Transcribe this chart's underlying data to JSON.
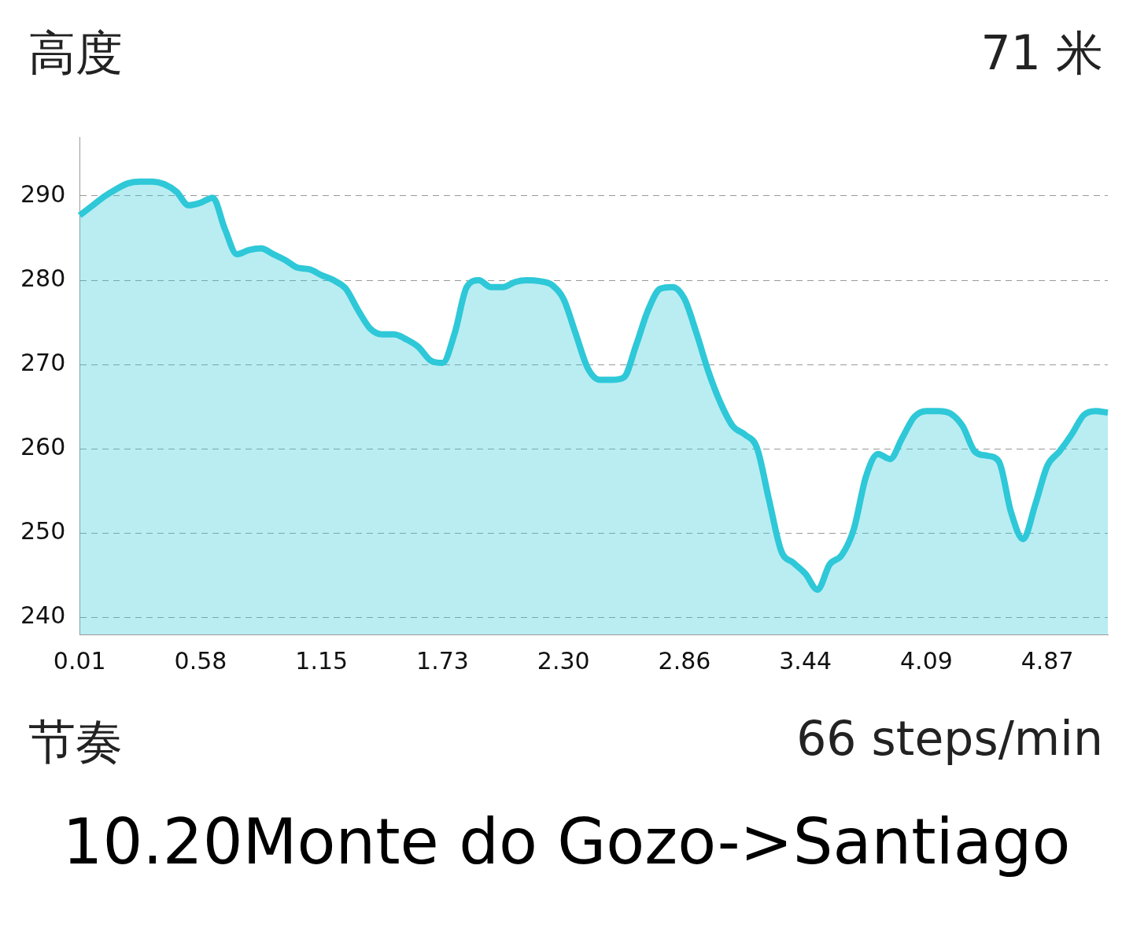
{
  "chart_data": {
    "type": "area",
    "title": "高度",
    "subtitle": "71 米",
    "annotations": [
      "节奏",
      "66 steps/min",
      "10.20Monte do Gozo->Santiago"
    ],
    "categories": [
      "0.01",
      null,
      null,
      null,
      null,
      null,
      null,
      null,
      null,
      null,
      "0.58",
      null,
      null,
      null,
      null,
      null,
      null,
      null,
      null,
      null,
      "1.15",
      null,
      null,
      null,
      null,
      null,
      null,
      null,
      null,
      null,
      "1.73",
      null,
      null,
      null,
      null,
      null,
      null,
      null,
      null,
      null,
      "2.30",
      null,
      null,
      null,
      null,
      null,
      null,
      null,
      null,
      null,
      "2.86",
      null,
      null,
      null,
      null,
      null,
      null,
      null,
      null,
      null,
      "3.44",
      null,
      null,
      null,
      null,
      null,
      null,
      null,
      null,
      null,
      "4.09",
      null,
      null,
      null,
      null,
      null,
      null,
      null,
      null,
      null,
      "4.87",
      null,
      null,
      null,
      null,
      null
    ],
    "series": [
      {
        "color": "#2ec8d8",
        "values": [
          287.7,
          288.8,
          289.9,
          290.8,
          291.5,
          291.7,
          291.7,
          291.4,
          290.5,
          288.9,
          289.2,
          289.8,
          286.1,
          283.1,
          283.6,
          283.8,
          283.1,
          282.4,
          281.5,
          281.3,
          280.6,
          280.0,
          279.0,
          276.5,
          274.3,
          273.6,
          273.6,
          273.0,
          272.1,
          270.5,
          270.2,
          273.7,
          279.2,
          280.0,
          279.2,
          279.2,
          279.8,
          280.0,
          279.9,
          279.5,
          277.8,
          273.7,
          269.6,
          268.2,
          268.2,
          268.5,
          272.3,
          276.5,
          279.0,
          279.2,
          277.8,
          273.7,
          269.1,
          265.4,
          262.7,
          261.7,
          260.1,
          253.9,
          247.9,
          246.5,
          245.2,
          243.3,
          246.3,
          247.4,
          250.5,
          256.7,
          259.4,
          258.8,
          261.3,
          263.8,
          264.5,
          264.5,
          264.2,
          262.7,
          259.7,
          259.2,
          258.5,
          252.5,
          249.3,
          253.4,
          258.0,
          259.7,
          261.7,
          264.0,
          264.5,
          264.3
        ]
      }
    ],
    "ylim": [
      238,
      297
    ],
    "yticks": [
      240,
      250,
      260,
      270,
      280,
      290
    ],
    "grid": "y",
    "line_style": "dashed"
  }
}
